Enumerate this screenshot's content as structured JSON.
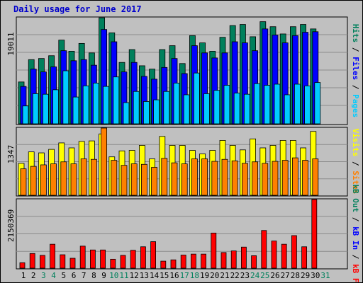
{
  "chart_data": [
    {
      "type": "bar",
      "title": "Daily usage for June 2017",
      "panel": "hits-files-pages",
      "ymax_label": "19011",
      "ymax": 19011,
      "legend": [
        {
          "label": "Pages",
          "color": "#00ccff"
        },
        {
          "label": "Files",
          "color": "#0000ff"
        },
        {
          "label": "Hits",
          "color": "#00805c"
        }
      ],
      "legend_separator": " / ",
      "categories": [
        "1",
        "2",
        "3",
        "4",
        "5",
        "6",
        "7",
        "8",
        "9",
        "10",
        "11",
        "12",
        "13",
        "14",
        "15",
        "16",
        "17",
        "18",
        "19",
        "20",
        "21",
        "22",
        "23",
        "24",
        "25",
        "26",
        "27",
        "28",
        "29",
        "30",
        "31"
      ],
      "series": [
        {
          "name": "Hits",
          "color": "#00805c",
          "values": [
            7500,
            11500,
            11700,
            12200,
            15000,
            13000,
            14400,
            12700,
            19000,
            16300,
            11000,
            13300,
            10400,
            9800,
            13300,
            14000,
            10800,
            15800,
            14500,
            13000,
            15500,
            17600,
            17800,
            15600,
            18300,
            17400,
            16100,
            17400,
            17800,
            17000,
            null
          ]
        },
        {
          "name": "Files",
          "color": "#0000ff",
          "values": [
            6700,
            9800,
            9300,
            10200,
            13100,
            11300,
            11500,
            10500,
            16900,
            14700,
            9300,
            11000,
            8500,
            8000,
            10100,
            11700,
            9000,
            14000,
            12700,
            11800,
            12700,
            14700,
            14500,
            13100,
            17000,
            15900,
            14500,
            15800,
            16400,
            16500,
            null
          ]
        },
        {
          "name": "Pages",
          "color": "#00ccff",
          "values": [
            3200,
            5400,
            5300,
            6100,
            9500,
            4800,
            6800,
            7300,
            6700,
            8400,
            3800,
            5800,
            4000,
            4300,
            5800,
            7300,
            5200,
            9100,
            5400,
            6000,
            6900,
            5500,
            5300,
            7200,
            6900,
            7100,
            5200,
            7100,
            6800,
            7400,
            null
          ]
        }
      ]
    },
    {
      "type": "bar",
      "panel": "visits-sites",
      "ymax_label": "1347",
      "ymax": 1347,
      "legend": [
        {
          "label": "Sites",
          "color": "#ff8000"
        },
        {
          "label": "Visits",
          "color": "#ffff00"
        }
      ],
      "legend_separator": " / ",
      "categories": [
        "1",
        "2",
        "3",
        "4",
        "5",
        "6",
        "7",
        "8",
        "9",
        "10",
        "11",
        "12",
        "13",
        "14",
        "15",
        "16",
        "17",
        "18",
        "19",
        "20",
        "21",
        "22",
        "23",
        "24",
        "25",
        "26",
        "27",
        "28",
        "29",
        "30",
        "31"
      ],
      "series": [
        {
          "name": "Visits",
          "color": "#ffff00",
          "values": [
            640,
            870,
            850,
            920,
            1050,
            950,
            1080,
            1090,
            1230,
            770,
            890,
            900,
            1000,
            730,
            1180,
            1000,
            1000,
            900,
            830,
            900,
            1100,
            1000,
            910,
            1130,
            950,
            1000,
            1100,
            1100,
            950,
            1280,
            null
          ]
        },
        {
          "name": "Sites",
          "color": "#ff8000",
          "values": [
            530,
            580,
            610,
            630,
            670,
            630,
            730,
            720,
            1347,
            700,
            600,
            630,
            620,
            560,
            740,
            650,
            630,
            730,
            730,
            680,
            720,
            690,
            640,
            670,
            640,
            680,
            700,
            750,
            700,
            730,
            null
          ]
        }
      ]
    },
    {
      "type": "bar",
      "panel": "kbytes",
      "ymax_label": "2150369",
      "ymax": 2150369,
      "legend": [
        {
          "label": "kB F",
          "color": "#ff0000"
        },
        {
          "label": "kB In",
          "color": "#0000ff"
        },
        {
          "label": "kB Out",
          "color": "#00805c"
        }
      ],
      "legend_separator": " / ",
      "categories": [
        "1",
        "2",
        "3",
        "4",
        "5",
        "6",
        "7",
        "8",
        "9",
        "10",
        "11",
        "12",
        "13",
        "14",
        "15",
        "16",
        "17",
        "18",
        "19",
        "20",
        "21",
        "22",
        "23",
        "24",
        "25",
        "26",
        "27",
        "28",
        "29",
        "30",
        "31"
      ],
      "series": [
        {
          "name": "kB F",
          "color": "#ff0000",
          "values": [
            170000,
            460000,
            400000,
            750000,
            420000,
            310000,
            690000,
            570000,
            570000,
            280000,
            400000,
            560000,
            670000,
            830000,
            220000,
            260000,
            410000,
            440000,
            440000,
            1100000,
            490000,
            540000,
            660000,
            390000,
            1180000,
            850000,
            750000,
            1020000,
            670000,
            2150369,
            null
          ]
        }
      ]
    }
  ],
  "x_labels": [
    {
      "text": "1",
      "color": "#000000"
    },
    {
      "text": "2",
      "color": "#000000"
    },
    {
      "text": "3",
      "color": "#00805c"
    },
    {
      "text": "4",
      "color": "#00805c"
    },
    {
      "text": "5",
      "color": "#000000"
    },
    {
      "text": "6",
      "color": "#000000"
    },
    {
      "text": "7",
      "color": "#000000"
    },
    {
      "text": "8",
      "color": "#000000"
    },
    {
      "text": "9",
      "color": "#000000"
    },
    {
      "text": "10",
      "color": "#00805c"
    },
    {
      "text": "11",
      "color": "#00805c"
    },
    {
      "text": "12",
      "color": "#000000"
    },
    {
      "text": "13",
      "color": "#000000"
    },
    {
      "text": "14",
      "color": "#000000"
    },
    {
      "text": "15",
      "color": "#000000"
    },
    {
      "text": "16",
      "color": "#000000"
    },
    {
      "text": "17",
      "color": "#00805c"
    },
    {
      "text": "18",
      "color": "#00805c"
    },
    {
      "text": "19",
      "color": "#000000"
    },
    {
      "text": "20",
      "color": "#000000"
    },
    {
      "text": "21",
      "color": "#000000"
    },
    {
      "text": "22",
      "color": "#000000"
    },
    {
      "text": "23",
      "color": "#000000"
    },
    {
      "text": "24",
      "color": "#00805c"
    },
    {
      "text": "25",
      "color": "#00805c"
    },
    {
      "text": "26",
      "color": "#000000"
    },
    {
      "text": "27",
      "color": "#000000"
    },
    {
      "text": "28",
      "color": "#000000"
    },
    {
      "text": "29",
      "color": "#000000"
    },
    {
      "text": "30",
      "color": "#000000"
    },
    {
      "text": "31",
      "color": "#00805c"
    }
  ]
}
